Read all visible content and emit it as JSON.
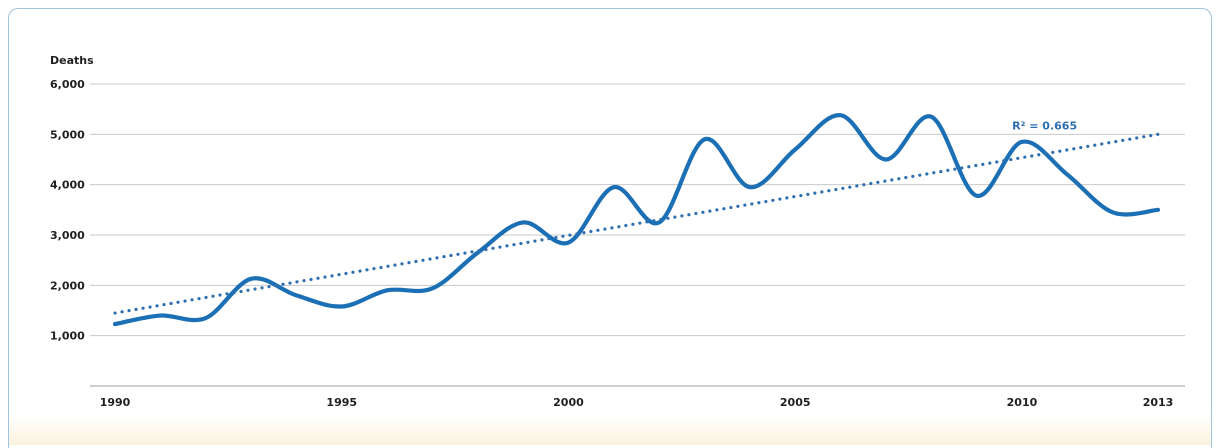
{
  "chart_data": {
    "type": "line",
    "ylabel": "Deaths",
    "ylim": [
      0,
      6000
    ],
    "yticks": [
      1000,
      2000,
      3000,
      4000,
      5000,
      6000
    ],
    "ytick_labels": [
      "1,000",
      "2,000",
      "3,000",
      "4,000",
      "5,000",
      "6,000"
    ],
    "xlim": [
      1990,
      2013
    ],
    "xticks": [
      1990,
      1995,
      2000,
      2005,
      2010,
      2013
    ],
    "xtick_labels": [
      "1990",
      "1995",
      "2000",
      "2005",
      "2010",
      "2013"
    ],
    "grid": "horizontal",
    "series": [
      {
        "style": "solid",
        "color": "#1b6fb5",
        "x": [
          1990,
          1991,
          1992,
          1993,
          1994,
          1995,
          1996,
          1997,
          1998,
          1999,
          2000,
          2001,
          2002,
          2003,
          2004,
          2005,
          2006,
          2007,
          2008,
          2009,
          2010,
          2011,
          2012,
          2013
        ],
        "y": [
          1230,
          1400,
          1350,
          2130,
          1800,
          1580,
          1900,
          1940,
          2650,
          3250,
          2850,
          3950,
          3250,
          4900,
          3950,
          4700,
          5380,
          4500,
          5350,
          3780,
          4850,
          4200,
          3450,
          3500
        ]
      },
      {
        "style": "dotted",
        "color": "#2e6fb0",
        "x": [
          1990,
          2013
        ],
        "y": [
          1450,
          5000
        ]
      }
    ],
    "annotations": [
      {
        "text": "R² = 0.665",
        "x": 2010.5,
        "y": 5100
      }
    ]
  }
}
